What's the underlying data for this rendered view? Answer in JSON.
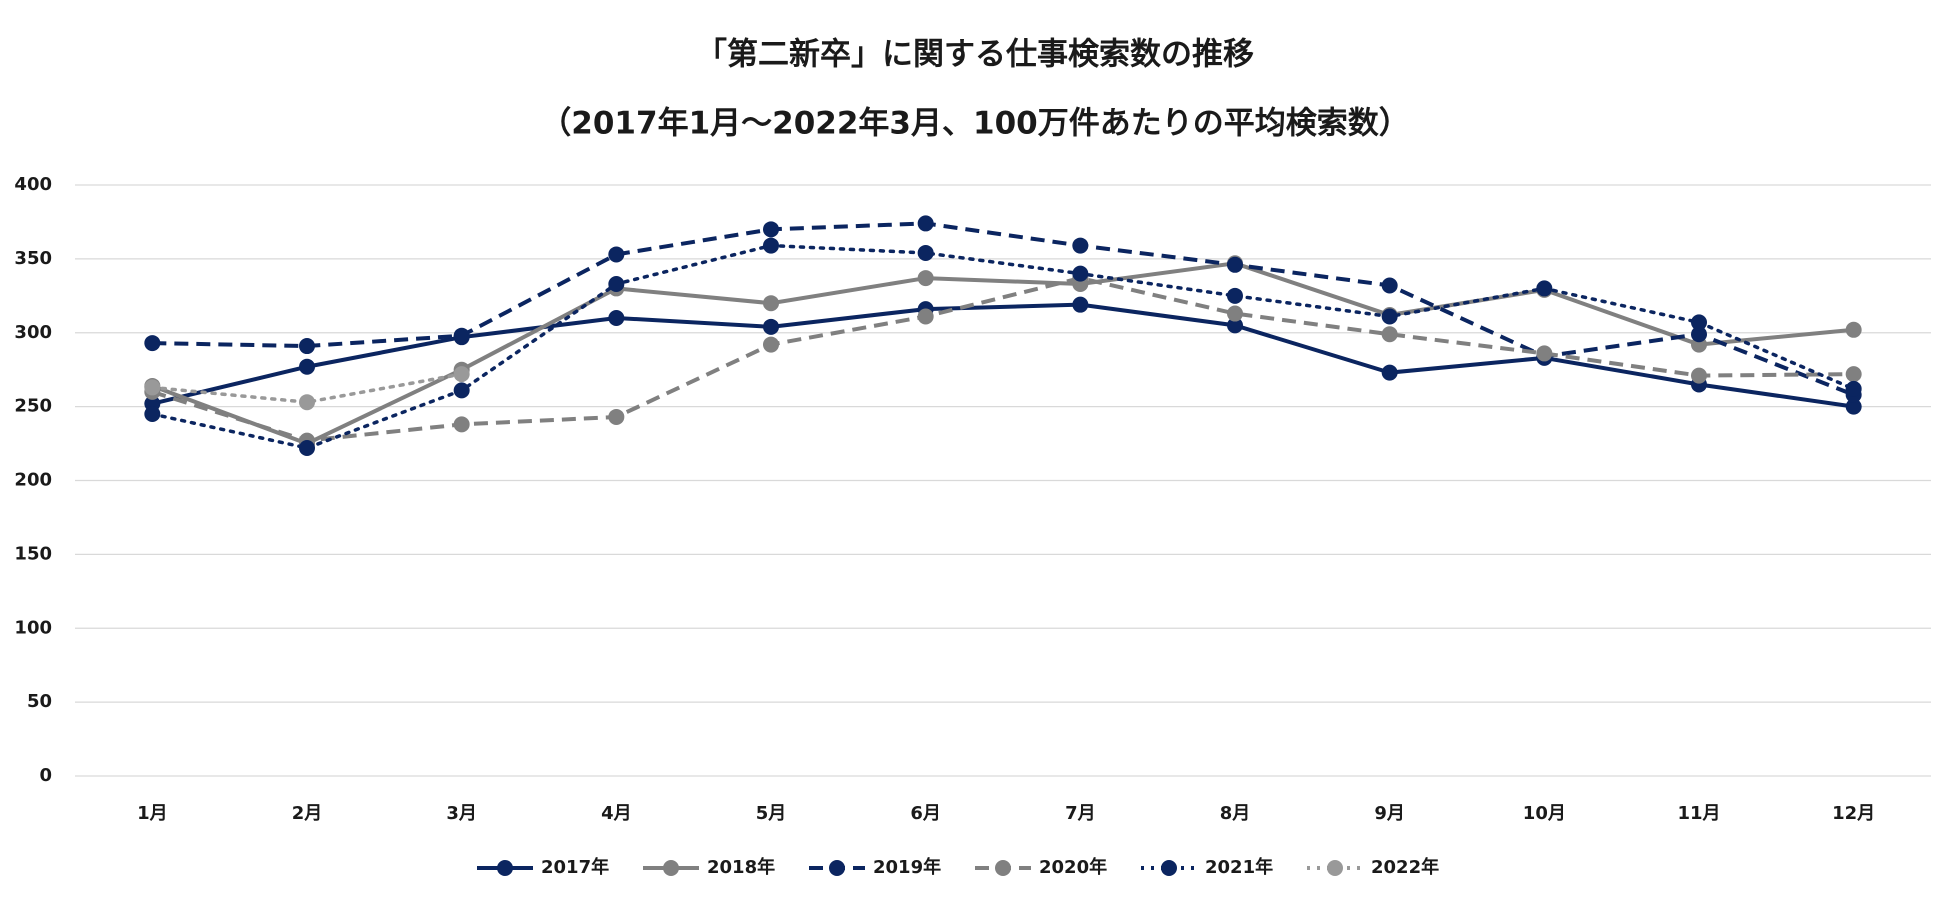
{
  "chart_data": {
    "type": "line",
    "title": "「第二新卒」に関する仕事検索数の推移",
    "subtitle": "（2017年1月～2022年3月、100万件あたりの平均検索数）",
    "categories": [
      "1月",
      "2月",
      "3月",
      "4月",
      "5月",
      "6月",
      "7月",
      "8月",
      "9月",
      "10月",
      "11月",
      "12月"
    ],
    "series": [
      {
        "name": "2017年",
        "color": "#0b2560",
        "style": "solid",
        "values": [
          252,
          277,
          297,
          310,
          304,
          316,
          319,
          305,
          273,
          283,
          265,
          250
        ]
      },
      {
        "name": "2018年",
        "color": "#808080",
        "style": "solid",
        "values": [
          264,
          225,
          275,
          330,
          320,
          337,
          333,
          347,
          312,
          329,
          292,
          302
        ]
      },
      {
        "name": "2019年",
        "color": "#0b2560",
        "style": "dashed",
        "values": [
          293,
          291,
          298,
          353,
          370,
          374,
          359,
          346,
          332,
          284,
          299,
          258
        ]
      },
      {
        "name": "2020年",
        "color": "#808080",
        "style": "dashed",
        "values": [
          260,
          227,
          238,
          243,
          292,
          311,
          337,
          313,
          299,
          286,
          271,
          272
        ]
      },
      {
        "name": "2021年",
        "color": "#0b2560",
        "style": "dotted",
        "values": [
          245,
          222,
          261,
          333,
          359,
          354,
          340,
          325,
          311,
          330,
          307,
          262
        ]
      },
      {
        "name": "2022年",
        "color": "#999999",
        "style": "dotted",
        "values": [
          263,
          253,
          272,
          null,
          null,
          null,
          null,
          null,
          null,
          null,
          null,
          null
        ]
      }
    ],
    "ylim": [
      0,
      400
    ],
    "yticks": [
      0,
      50,
      100,
      150,
      200,
      250,
      300,
      350,
      400
    ],
    "grid": true,
    "legend": "bottom"
  }
}
